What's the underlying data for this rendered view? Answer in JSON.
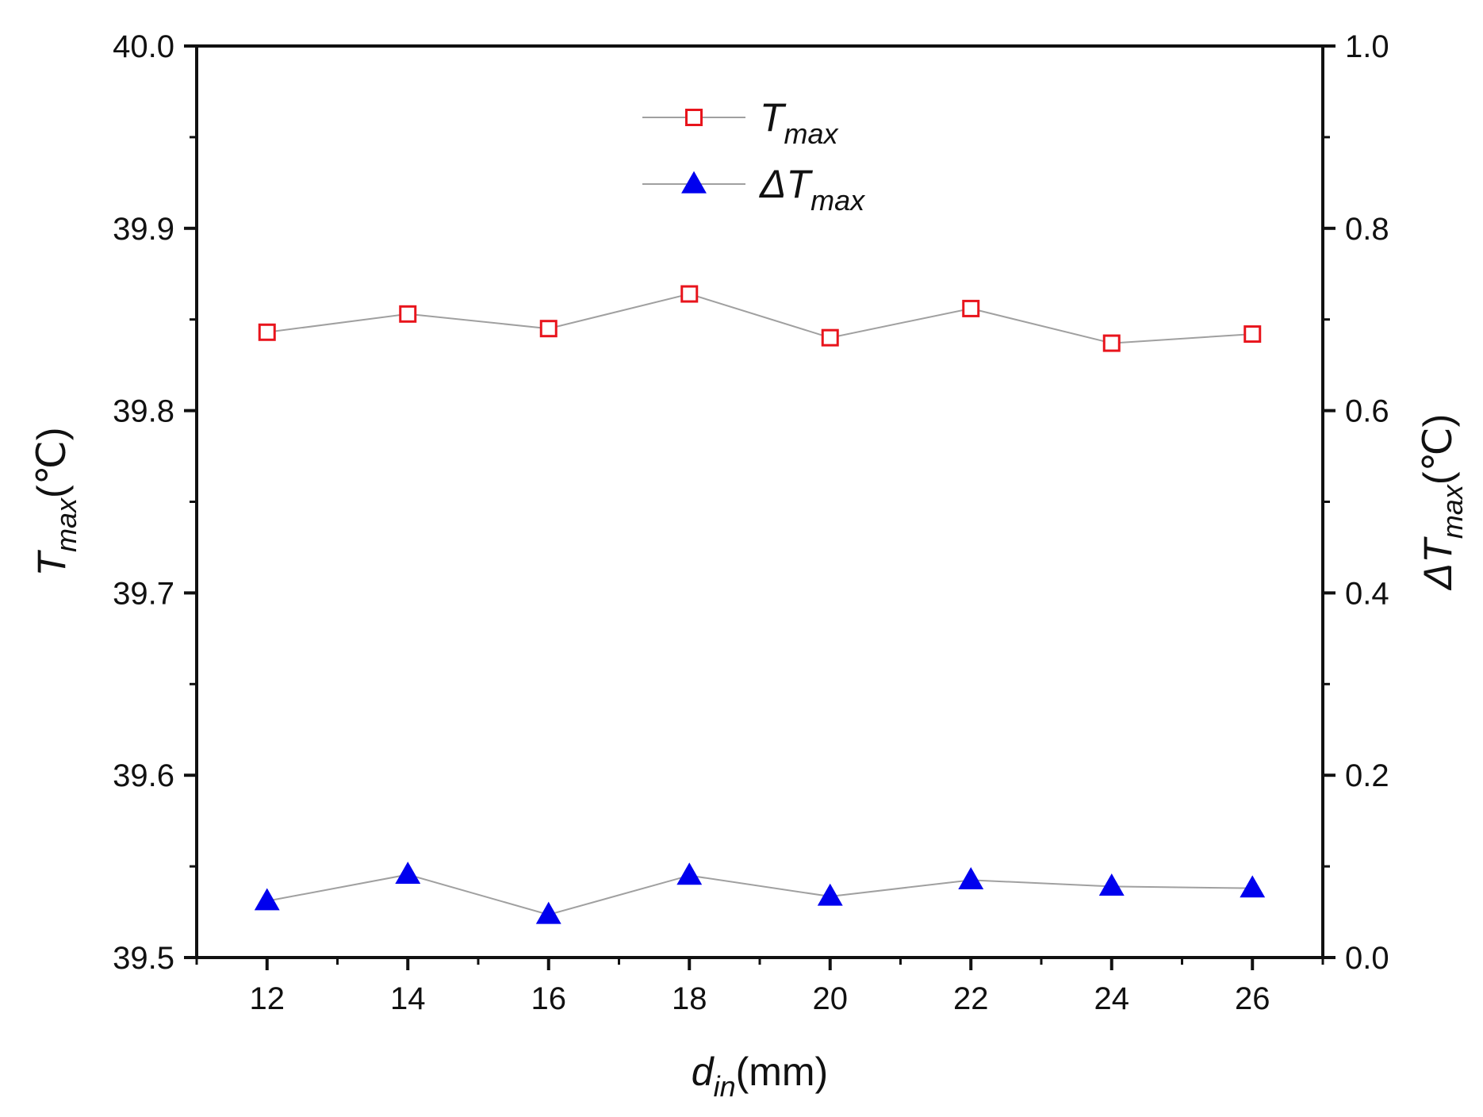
{
  "chart_data": {
    "type": "line",
    "title": "",
    "x": [
      12,
      14,
      16,
      18,
      20,
      22,
      24,
      26
    ],
    "xlim": [
      11,
      27
    ],
    "xticks": [
      12,
      14,
      16,
      18,
      20,
      22,
      24,
      26
    ],
    "xtick_labels": [
      "12",
      "14",
      "16",
      "18",
      "20",
      "22",
      "24",
      "26"
    ],
    "xlabel": {
      "main": "d",
      "sub": "in",
      "unit": "(mm)"
    },
    "ylim_left": [
      39.5,
      40.0
    ],
    "yticks_left": [
      39.5,
      39.6,
      39.7,
      39.8,
      39.9,
      40.0
    ],
    "ytick_labels_left": [
      "39.5",
      "39.6",
      "39.7",
      "39.8",
      "39.9",
      "40.0"
    ],
    "ylabel_left": {
      "main": "T",
      "sub": "max",
      "unit": "(℃)"
    },
    "ylim_right": [
      0.0,
      1.0
    ],
    "yticks_right": [
      0.0,
      0.2,
      0.4,
      0.6,
      0.8,
      1.0
    ],
    "ytick_labels_right": [
      "0.0",
      "0.2",
      "0.4",
      "0.6",
      "0.8",
      "1.0"
    ],
    "ylabel_right": {
      "main": "ΔT",
      "sub": "max",
      "unit": "(℃)"
    },
    "series": [
      {
        "name": "T_max",
        "legend_main": "T",
        "legend_sub": "max",
        "axis": "left",
        "marker": "open-square",
        "color": "#e8141c",
        "line_color": "#a0a0a0",
        "values": [
          39.843,
          39.853,
          39.845,
          39.864,
          39.84,
          39.856,
          39.837,
          39.842
        ]
      },
      {
        "name": "ΔT_max",
        "legend_main": "ΔT",
        "legend_sub": "max",
        "axis": "right",
        "marker": "filled-triangle",
        "color": "#0000ee",
        "line_color": "#a0a0a0",
        "values": [
          0.062,
          0.091,
          0.047,
          0.09,
          0.067,
          0.085,
          0.078,
          0.076
        ]
      }
    ],
    "legend_position": "top-center",
    "grid": false
  }
}
